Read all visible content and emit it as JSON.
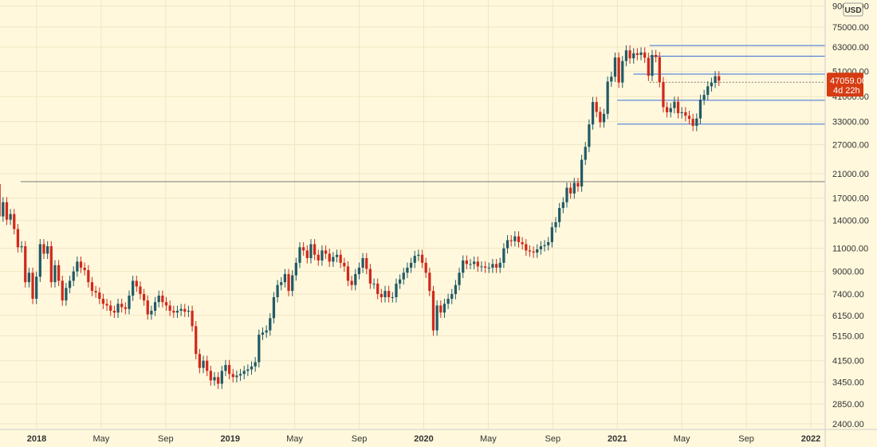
{
  "chart_data": {
    "type": "candlestick",
    "title": "",
    "scale": "log",
    "currency": "USD",
    "grid": true,
    "colors": {
      "background": "#fff8dc",
      "up": "#225a66",
      "down": "#d0291c",
      "level_blue": "#3a6fd8",
      "level_gray": "#7a7a7a",
      "price_badge": "#d63b12",
      "axis_line": "#cccccc"
    },
    "y_ticks": [
      "90000.00",
      "75000.00",
      "63000.00",
      "51000.00",
      "41000.00",
      "33000.00",
      "27000.00",
      "21000.00",
      "17000.00",
      "14000.00",
      "11000.00",
      "9000.00",
      "7400.00",
      "6150.00",
      "5150.00",
      "4150.00",
      "3450.00",
      "2850.00",
      "2400.00"
    ],
    "x_ticks": [
      "2018",
      "May",
      "Sep",
      "2019",
      "May",
      "Sep",
      "2020",
      "May",
      "Sep",
      "2021",
      "May",
      "Sep",
      "2022"
    ],
    "current_price": "47059.00",
    "countdown": "4d 22h",
    "horizontal_levels": [
      {
        "price": 63800,
        "color": "blue",
        "from": "2021-03"
      },
      {
        "price": 58200,
        "color": "blue",
        "from": "2021-03"
      },
      {
        "price": 49800,
        "color": "blue",
        "from": "2021-02"
      },
      {
        "price": 46400,
        "color": "gray-dotted",
        "from": "2021-03"
      },
      {
        "price": 39700,
        "color": "blue",
        "from": "2021-01"
      },
      {
        "price": 32300,
        "color": "blue",
        "from": "2021-01"
      },
      {
        "price": 19600,
        "color": "gray",
        "from": "2017-12"
      }
    ],
    "week_closes": [
      6100,
      6300,
      7300,
      8100,
      9500,
      11500,
      13200,
      16500,
      17800,
      19200,
      14500,
      16400,
      14100,
      14800,
      13000,
      11100,
      11200,
      8200,
      8900,
      7100,
      8600,
      11400,
      10500,
      11200,
      8200,
      9500,
      8300,
      7000,
      7800,
      8300,
      9000,
      9800,
      9300,
      9100,
      8200,
      7600,
      7500,
      7100,
      6800,
      6700,
      6400,
      6300,
      6800,
      6600,
      6500,
      7300,
      8300,
      7900,
      7400,
      7000,
      6200,
      6400,
      6900,
      7300,
      6900,
      6700,
      6400,
      6300,
      6400,
      6500,
      6350,
      6400,
      5600,
      4400,
      3900,
      4150,
      3800,
      3500,
      3600,
      3400,
      3800,
      4000,
      3700,
      3600,
      3650,
      3700,
      3800,
      3850,
      3950,
      4100,
      5200,
      5300,
      5400,
      6000,
      7200,
      8000,
      8200,
      8800,
      7600,
      8700,
      9700,
      11100,
      10800,
      10100,
      11400,
      10400,
      9900,
      10800,
      10500,
      9800,
      10200,
      10400,
      9700,
      9400,
      8300,
      8000,
      8800,
      9300,
      10100,
      9200,
      8100,
      8100,
      7400,
      7200,
      7600,
      7200,
      7200,
      8100,
      8400,
      8900,
      9300,
      9700,
      10300,
      10400,
      9700,
      8900,
      7600,
      5400,
      6700,
      6300,
      6800,
      7100,
      7400,
      8000,
      8900,
      9900,
      9600,
      9600,
      9800,
      9400,
      9400,
      9300,
      9300,
      9600,
      9300,
      9700,
      11000,
      11800,
      11700,
      12200,
      11600,
      11400,
      10800,
      10700,
      10600,
      10900,
      11200,
      11300,
      11600,
      13200,
      13800,
      15600,
      16400,
      18600,
      17700,
      19400,
      18800,
      23700,
      26500,
      32200,
      39100,
      35900,
      32800,
      35300,
      46700,
      48700,
      57500,
      46300,
      55800,
      61200,
      57100,
      59700,
      58800,
      60100,
      57400,
      49100,
      58800,
      57700,
      46500,
      37400,
      35800,
      37100,
      39200,
      35500,
      35800,
      34700,
      33800,
      31800,
      33900,
      39900,
      41600,
      44800,
      46200,
      48900,
      47059
    ],
    "start_year_fraction": 2017.6154,
    "weeks_per_year": 52.1775
  }
}
